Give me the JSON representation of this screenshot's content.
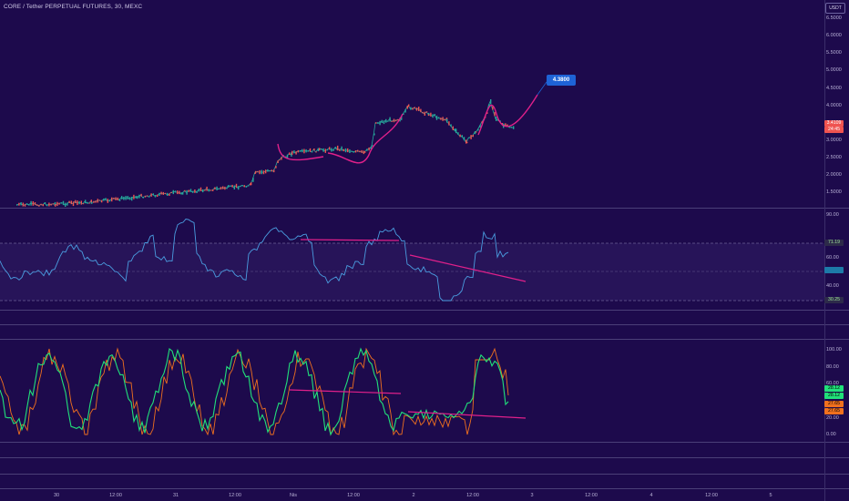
{
  "chart_title": "CORE / Tether PERPETUAL FUTURES, 30, MEXC",
  "currency_button": "USDT",
  "callout_label": "4.3800",
  "price_axis": [
    "6.5000",
    "6.0000",
    "5.5000",
    "5.0000",
    "4.5000",
    "4.0000",
    "3.5000",
    "3.0000",
    "2.5000",
    "2.0000",
    "1.5000"
  ],
  "price_tags": {
    "price": "3.4109",
    "countdown": "24:45"
  },
  "rsi_axis": [
    "90.00",
    "60.00",
    "40.00"
  ],
  "rsi_tags": {
    "upper": "71.19",
    "value": "",
    "lower": "30.25"
  },
  "stoch_axis": [
    "100.00",
    "80.00",
    "60.00",
    "20.00",
    "0.00"
  ],
  "stoch_tags": [
    "28.12",
    "28.12",
    "27.65",
    "27.65"
  ],
  "time_axis": [
    "30",
    "12:00",
    "31",
    "12:00",
    "Nis",
    "12:00",
    "2",
    "12:00",
    "3",
    "12:00",
    "4",
    "12:00",
    "5"
  ],
  "colors": {
    "background": "#1d0a4c",
    "candle_up": "#26a69a",
    "candle_down": "#ef5350",
    "drawing_magenta": "#e0208a",
    "rsi_line": "#4a9de0",
    "stoch_k": "#21e07a",
    "stoch_d": "#f0701e",
    "callout": "#1e63d6"
  }
}
